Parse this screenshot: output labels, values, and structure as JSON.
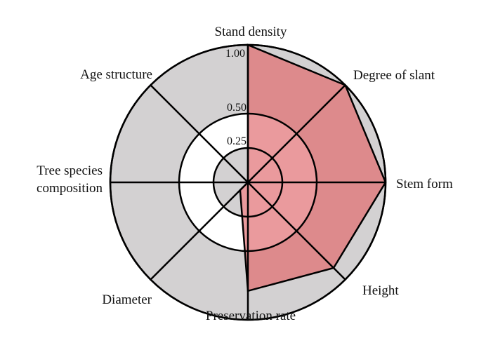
{
  "chart_data": {
    "type": "radar",
    "axes": [
      "Stand density",
      "Degree of slant",
      "Stem form",
      "Height",
      "Preservation rate",
      "Diameter",
      "Tree species composition",
      "Age structure"
    ],
    "axis_label_lines": [
      [
        "Stand density"
      ],
      [
        "Degree of slant"
      ],
      [
        "Stem form"
      ],
      [
        "Height"
      ],
      [
        "Preservation rate"
      ],
      [
        "Diameter"
      ],
      [
        "Tree species",
        "composition"
      ],
      [
        "Age structure"
      ]
    ],
    "values": [
      1.0,
      1.0,
      1.0,
      0.88,
      0.79,
      0.08,
      0.0,
      0.0
    ],
    "rings": [
      0.25,
      0.5,
      1.0
    ],
    "ring_labels": [
      "0.25",
      "0.50",
      "1.00"
    ],
    "range": [
      0,
      1
    ],
    "colors": {
      "background_disc": "#d3d1d2",
      "data_fill": "#dd8a8c",
      "inner_highlight": "#ea9a9d",
      "inner_zone": "#ffffff",
      "lines": "#000000"
    }
  }
}
